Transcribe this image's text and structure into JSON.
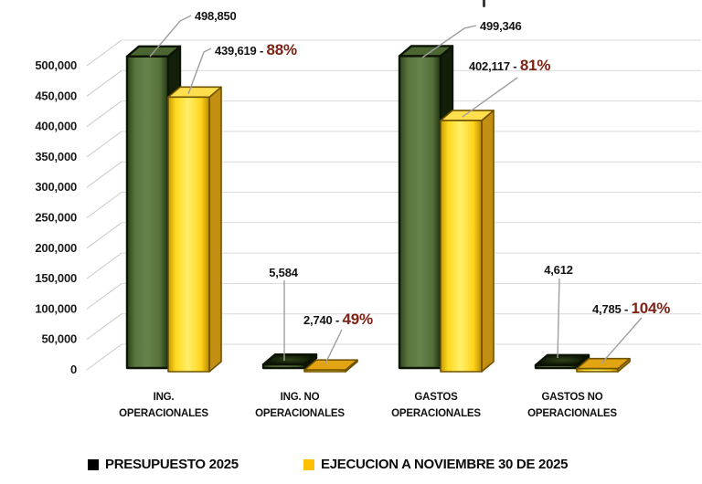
{
  "chart_data": {
    "type": "bar",
    "title": "",
    "xlabel": "",
    "ylabel": "",
    "ylim": [
      0,
      500000
    ],
    "ytick_step": 50000,
    "yticks": [
      "0",
      "50,000",
      "100,000",
      "150,000",
      "200,000",
      "250,000",
      "300,000",
      "350,000",
      "400,000",
      "450,000",
      "500,000"
    ],
    "grid": true,
    "legend_position": "bottom",
    "effect": "3d",
    "categories": [
      [
        "ING.",
        "OPERACIONALES"
      ],
      [
        "ING. NO",
        "OPERACIONALES"
      ],
      [
        "GASTOS",
        "OPERACIONALES"
      ],
      [
        "GASTOS NO",
        "OPERACIONALES"
      ]
    ],
    "series": [
      {
        "name": "PRESUPUESTO 2025",
        "legend_color": "#000000",
        "bar_color": "#51673a",
        "values": [
          498850,
          5584,
          499346,
          4612
        ],
        "labels": [
          "498,850",
          "5,584",
          "499,346",
          "4,612"
        ]
      },
      {
        "name": "EJECUCION A NOVIEMBRE 30 DE 2025",
        "legend_color": "#ffc000",
        "bar_color": "#ffdf2e",
        "values": [
          439619,
          2740,
          402117,
          4785
        ],
        "labels": [
          "439,619",
          "2,740",
          "402,117",
          "4,785"
        ],
        "pct": [
          "88%",
          "49%",
          "81%",
          "104%"
        ],
        "pct_color": "#7d2316"
      }
    ]
  }
}
